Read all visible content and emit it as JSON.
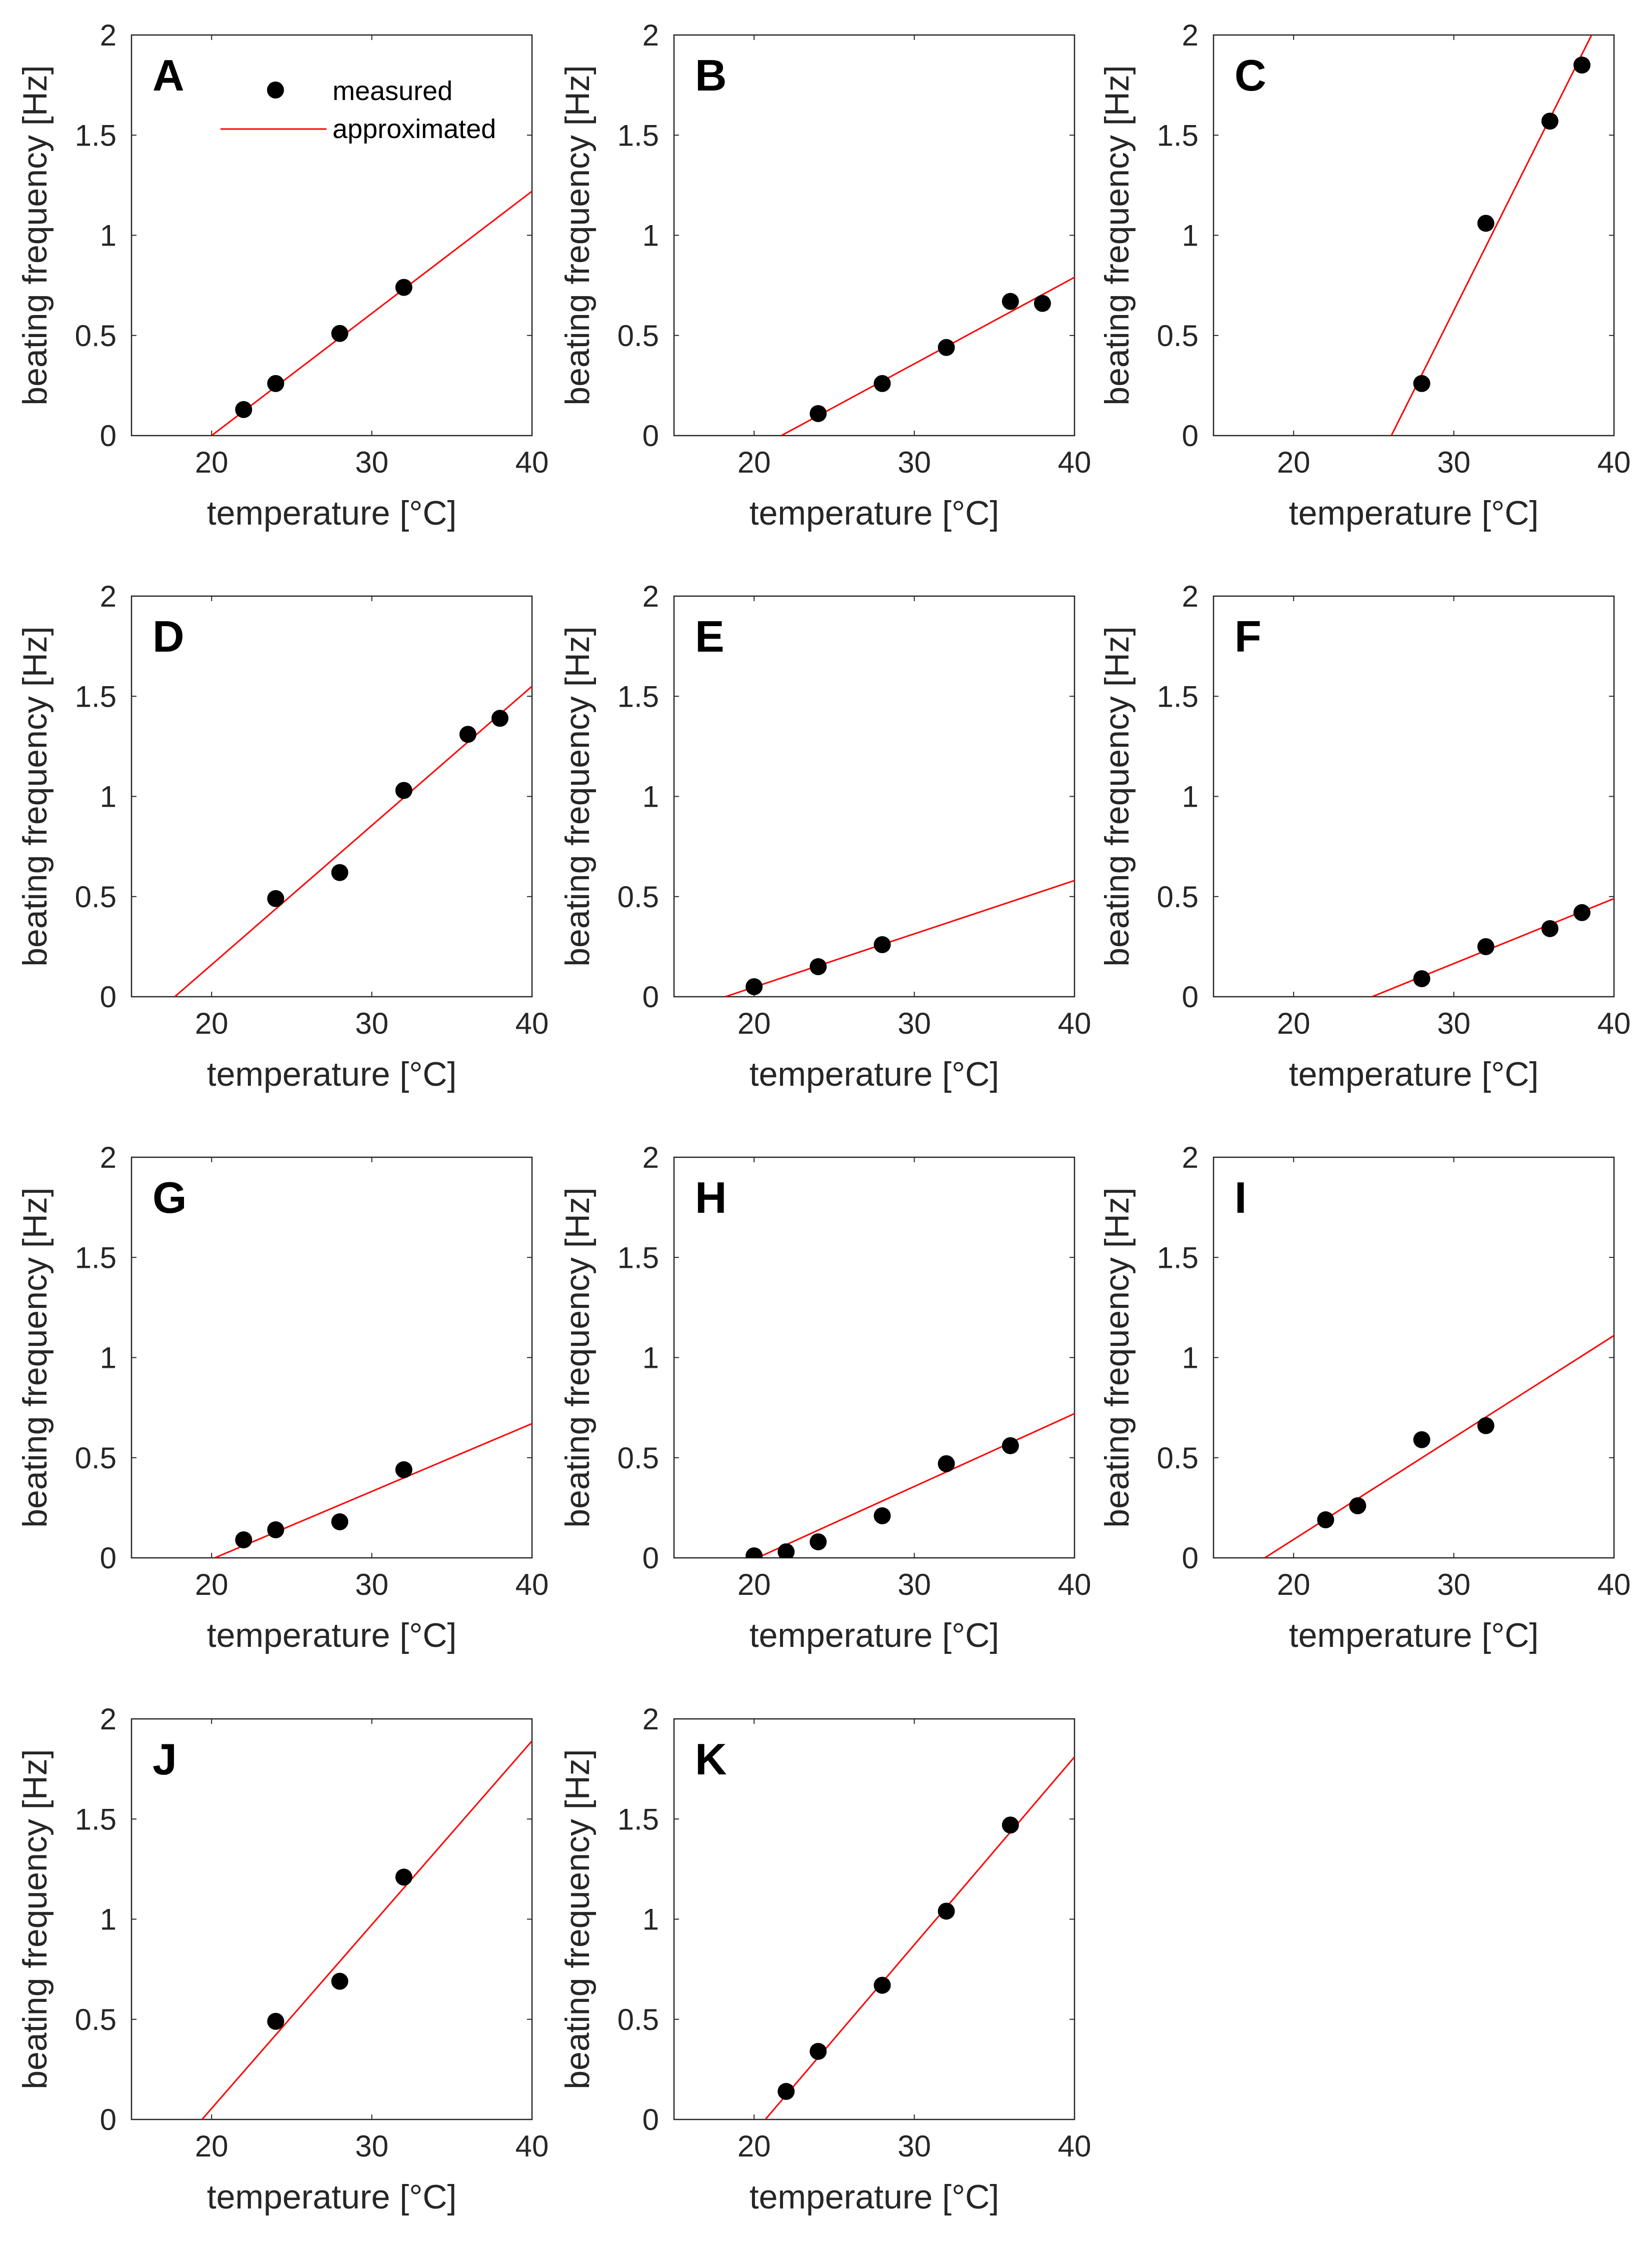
{
  "figure": {
    "x_axis_label": "temperature  [°C]",
    "y_axis_label": "beating frequency [Hz]",
    "legend": {
      "measured_label": "measured",
      "approximated_label": "approximated",
      "marker_color": "#000000",
      "line_color": "#ff0000"
    }
  },
  "chart_data": [
    {
      "type": "scatter",
      "panel": "A",
      "xlim": [
        15,
        40
      ],
      "ylim": [
        0,
        2
      ],
      "xticks": [
        "20",
        "30",
        "40"
      ],
      "yticks": [
        "0",
        "0.5",
        "1",
        "1.5",
        "2"
      ],
      "x": [
        22,
        24,
        28,
        32
      ],
      "y": [
        0.13,
        0.26,
        0.51,
        0.74
      ],
      "fit": {
        "x": [
          20,
          40
        ],
        "y": [
          0,
          1.22
        ]
      }
    },
    {
      "type": "scatter",
      "panel": "B",
      "xlim": [
        15,
        40
      ],
      "ylim": [
        0,
        2
      ],
      "xticks": [
        "20",
        "30",
        "40"
      ],
      "yticks": [
        "0",
        "0.5",
        "1",
        "1.5",
        "2"
      ],
      "x": [
        24,
        28,
        32,
        36,
        38
      ],
      "y": [
        0.11,
        0.26,
        0.44,
        0.67,
        0.66
      ],
      "fit": {
        "x": [
          21.7,
          40
        ],
        "y": [
          0,
          0.79
        ]
      }
    },
    {
      "type": "scatter",
      "panel": "C",
      "xlim": [
        15,
        40
      ],
      "ylim": [
        0,
        2
      ],
      "xticks": [
        "20",
        "30",
        "40"
      ],
      "yticks": [
        "0",
        "0.5",
        "1",
        "1.5",
        "2"
      ],
      "x": [
        28,
        32,
        36,
        38
      ],
      "y": [
        0.26,
        1.06,
        1.57,
        1.85
      ],
      "fit": {
        "x": [
          26.1,
          38.6
        ],
        "y": [
          0,
          2
        ]
      }
    },
    {
      "type": "scatter",
      "panel": "D",
      "xlim": [
        15,
        40
      ],
      "ylim": [
        0,
        2
      ],
      "xticks": [
        "20",
        "30",
        "40"
      ],
      "yticks": [
        "0",
        "0.5",
        "1",
        "1.5",
        "2"
      ],
      "x": [
        24,
        28,
        32,
        36,
        38
      ],
      "y": [
        0.49,
        0.62,
        1.03,
        1.31,
        1.39
      ],
      "fit": {
        "x": [
          17.7,
          40
        ],
        "y": [
          0,
          1.55
        ]
      }
    },
    {
      "type": "scatter",
      "panel": "E",
      "xlim": [
        15,
        40
      ],
      "ylim": [
        0,
        2
      ],
      "xticks": [
        "20",
        "30",
        "40"
      ],
      "yticks": [
        "0",
        "0.5",
        "1",
        "1.5",
        "2"
      ],
      "x": [
        20,
        24,
        28
      ],
      "y": [
        0.05,
        0.15,
        0.26
      ],
      "fit": {
        "x": [
          18.2,
          40
        ],
        "y": [
          0,
          0.58
        ]
      }
    },
    {
      "type": "scatter",
      "panel": "F",
      "xlim": [
        15,
        40
      ],
      "ylim": [
        0,
        2
      ],
      "xticks": [
        "20",
        "30",
        "40"
      ],
      "yticks": [
        "0",
        "0.5",
        "1",
        "1.5",
        "2"
      ],
      "x": [
        28,
        32,
        36,
        38
      ],
      "y": [
        0.09,
        0.25,
        0.34,
        0.42
      ],
      "fit": {
        "x": [
          24.9,
          40
        ],
        "y": [
          0,
          0.49
        ]
      }
    },
    {
      "type": "scatter",
      "panel": "G",
      "xlim": [
        15,
        40
      ],
      "ylim": [
        0,
        2
      ],
      "xticks": [
        "20",
        "30",
        "40"
      ],
      "yticks": [
        "0",
        "0.5",
        "1",
        "1.5",
        "2"
      ],
      "x": [
        22,
        24,
        28,
        32
      ],
      "y": [
        0.09,
        0.14,
        0.18,
        0.44
      ],
      "fit": {
        "x": [
          20.2,
          40
        ],
        "y": [
          0,
          0.67
        ]
      }
    },
    {
      "type": "scatter",
      "panel": "H",
      "xlim": [
        15,
        40
      ],
      "ylim": [
        0,
        2
      ],
      "xticks": [
        "20",
        "30",
        "40"
      ],
      "yticks": [
        "0",
        "0.5",
        "1",
        "1.5",
        "2"
      ],
      "x": [
        20,
        22,
        24,
        28,
        32,
        36
      ],
      "y": [
        0.01,
        0.03,
        0.08,
        0.21,
        0.47,
        0.56
      ],
      "fit": {
        "x": [
          20.2,
          40
        ],
        "y": [
          0,
          0.72
        ]
      }
    },
    {
      "type": "scatter",
      "panel": "I",
      "xlim": [
        15,
        40
      ],
      "ylim": [
        0,
        2
      ],
      "xticks": [
        "20",
        "30",
        "40"
      ],
      "yticks": [
        "0",
        "0.5",
        "1",
        "1.5",
        "2"
      ],
      "x": [
        22,
        24,
        28,
        32
      ],
      "y": [
        0.19,
        0.26,
        0.59,
        0.66
      ],
      "fit": {
        "x": [
          18.2,
          40
        ],
        "y": [
          0,
          1.11
        ]
      }
    },
    {
      "type": "scatter",
      "panel": "J",
      "xlim": [
        15,
        40
      ],
      "ylim": [
        0,
        2
      ],
      "xticks": [
        "20",
        "30",
        "40"
      ],
      "yticks": [
        "0",
        "0.5",
        "1",
        "1.5",
        "2"
      ],
      "x": [
        24,
        28,
        32
      ],
      "y": [
        0.49,
        0.69,
        1.21
      ],
      "fit": {
        "x": [
          19.4,
          40
        ],
        "y": [
          0,
          1.89
        ]
      }
    },
    {
      "type": "scatter",
      "panel": "K",
      "xlim": [
        15,
        40
      ],
      "ylim": [
        0,
        2
      ],
      "xticks": [
        "20",
        "30",
        "40"
      ],
      "yticks": [
        "0",
        "0.5",
        "1",
        "1.5",
        "2"
      ],
      "x": [
        22,
        24,
        28,
        32,
        36
      ],
      "y": [
        0.14,
        0.34,
        0.67,
        1.04,
        1.47
      ],
      "fit": {
        "x": [
          20.7,
          40
        ],
        "y": [
          0,
          1.81
        ]
      }
    }
  ]
}
